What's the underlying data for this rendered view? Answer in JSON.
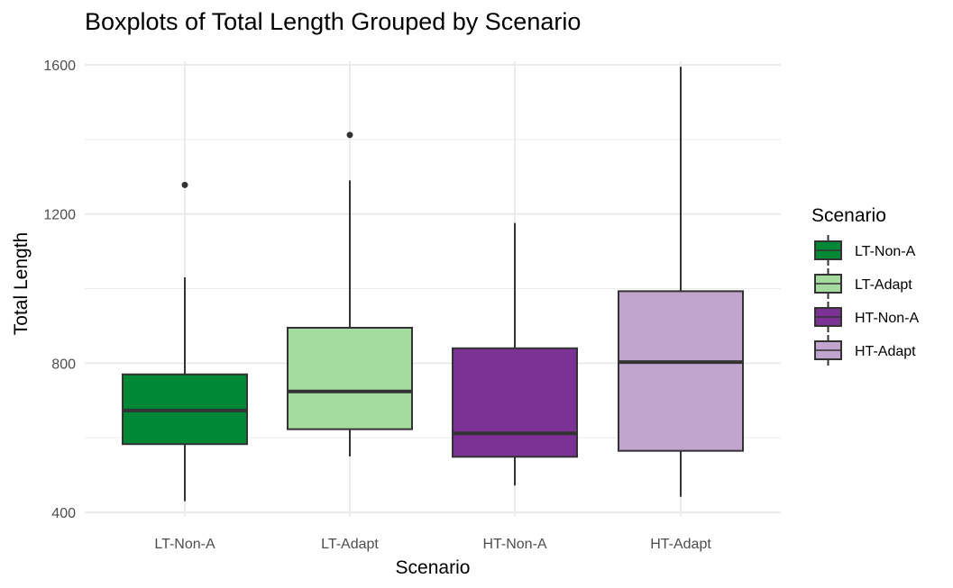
{
  "chart_data": {
    "type": "boxplot",
    "title": "Boxplots of Total Length Grouped by Scenario",
    "xlabel": "Scenario",
    "ylabel": "Total Length",
    "ylim": [
      390,
      1610
    ],
    "yticks": [
      400,
      800,
      1200,
      1600
    ],
    "y_minor_gridlines": [
      600,
      1000,
      1400
    ],
    "grid": true,
    "legend": {
      "title": "Scenario",
      "position": "right"
    },
    "categories": [
      "LT-Non-A",
      "LT-Adapt",
      "HT-Non-A",
      "HT-Adapt"
    ],
    "series": [
      {
        "name": "LT-Non-A",
        "color": "#008837",
        "min": 430,
        "q1": 583,
        "median": 673,
        "q3": 770,
        "max": 1030,
        "outliers": [
          1278
        ]
      },
      {
        "name": "LT-Adapt",
        "color": "#a6dba0",
        "min": 550,
        "q1": 623,
        "median": 724,
        "q3": 895,
        "max": 1290,
        "outliers": [
          1412
        ]
      },
      {
        "name": "HT-Non-A",
        "color": "#7b3294",
        "min": 472,
        "q1": 549,
        "median": 612,
        "q3": 840,
        "max": 1176,
        "outliers": []
      },
      {
        "name": "HT-Adapt",
        "color": "#c2a5cf",
        "min": 442,
        "q1": 565,
        "median": 803,
        "q3": 993,
        "max": 1595,
        "outliers": []
      }
    ]
  }
}
